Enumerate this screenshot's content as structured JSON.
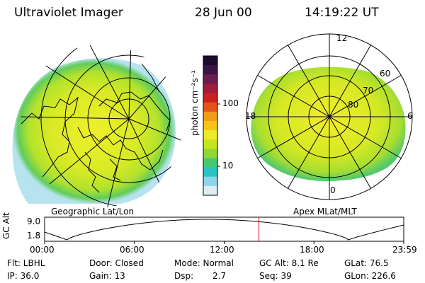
{
  "header": {
    "instrument": "Ultraviolet Imager",
    "date": "28 Jun 00",
    "time": "14:19:22 UT"
  },
  "colorbar": {
    "unit_label": "photon cm⁻²s⁻¹",
    "ticks": [
      "100",
      "10"
    ],
    "colors": [
      "#1a0a2e",
      "#3b1446",
      "#6a1d4e",
      "#a01c3a",
      "#cc1f1f",
      "#e5531a",
      "#f29b18",
      "#f7c21a",
      "#eeea28",
      "#c6e51f",
      "#8fd834",
      "#46c96e",
      "#29c3c4",
      "#8fd4e6",
      "#dceef4"
    ]
  },
  "left_panel": {
    "label": "Geographic Lat/Lon"
  },
  "right_panel": {
    "label": "Apex  MLat/MLT",
    "lat_labels": [
      "60",
      "70",
      "80"
    ],
    "mlt_labels": {
      "top": "12",
      "right": "6",
      "bottom": "0",
      "left": "18"
    }
  },
  "altitude_plot": {
    "ylabel": "GC Alt",
    "yticks": [
      "9.0",
      "1.8"
    ],
    "xticks": [
      "00:00",
      "06:00",
      "12:00",
      "18:00",
      "23:59"
    ],
    "current_marker_hours": 14.32
  },
  "info": {
    "filter": "Flt: LBHL",
    "ip": "IP: 36.0",
    "door": "Door: Closed",
    "gain": "Gain: 13",
    "mode": "Mode: Normal",
    "dsp_label": "Dsp:",
    "dsp_value": "2.7",
    "gc_alt": "GC Alt: 8.1 Re",
    "seq": "Seq: 39",
    "glat": "GLat:  76.5",
    "glon": "GLon: 226.6"
  }
}
